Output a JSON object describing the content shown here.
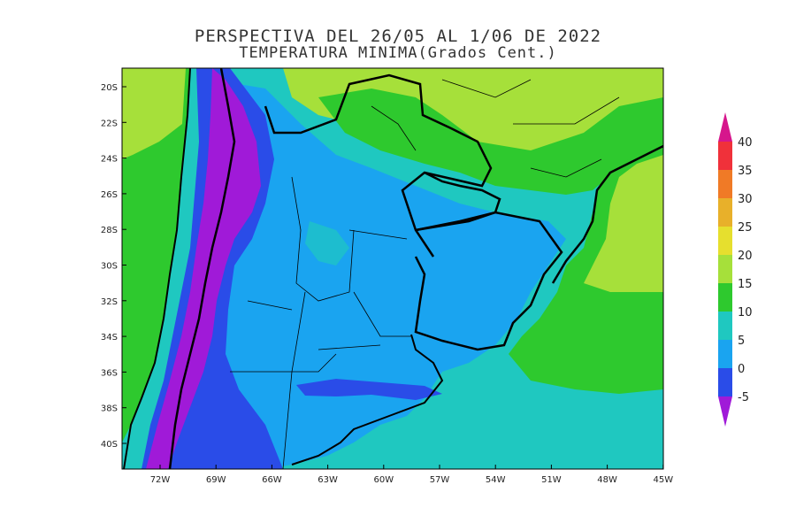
{
  "title_line1": "PERSPECTIVA DEL 26/05 AL 1/06 DE 2022",
  "title_line2": "TEMPERATURA MINIMA(Grados Cent.)",
  "lat_ticks": [
    "20S",
    "22S",
    "24S",
    "26S",
    "28S",
    "30S",
    "32S",
    "34S",
    "36S",
    "38S",
    "40S"
  ],
  "lon_ticks": [
    "72W",
    "69W",
    "66W",
    "63W",
    "60W",
    "57W",
    "54W",
    "51W",
    "48W",
    "45W"
  ],
  "legend": {
    "labels": [
      "40",
      "35",
      "30",
      "25",
      "20",
      "15",
      "10",
      "5",
      "0",
      "-5"
    ],
    "colors": {
      "gt40": "#d6168c",
      "35_40": "#f0313a",
      "30_35": "#f07a26",
      "25_30": "#e8b02a",
      "20_25": "#e6df2e",
      "15_20": "#a6e03a",
      "10_15": "#2ec92e",
      "5_10": "#1fc8c0",
      "0_5": "#1aa4f0",
      "m5_0": "#2a4ce8",
      "lt_m5": "#a01ad8"
    }
  }
}
